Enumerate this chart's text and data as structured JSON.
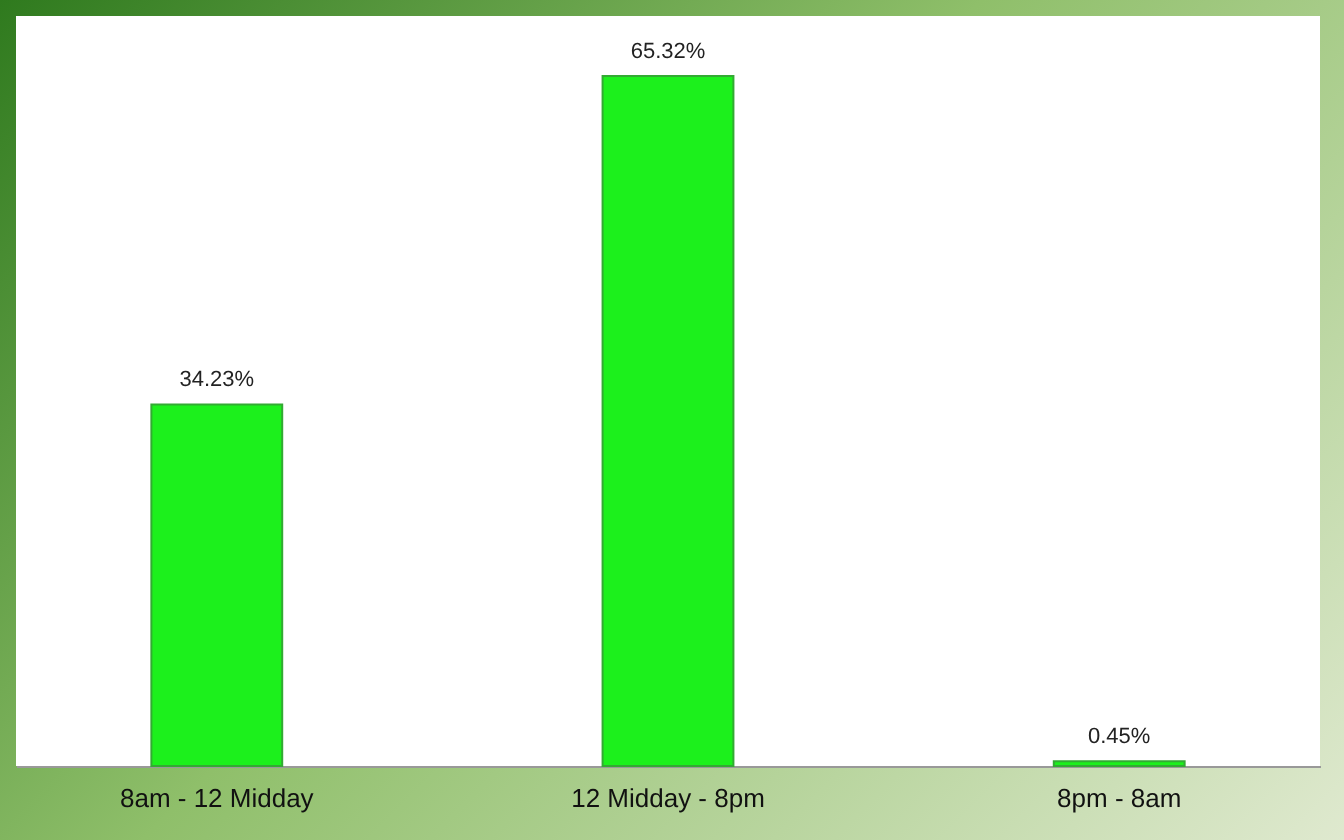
{
  "chart_data": {
    "type": "bar",
    "categories": [
      "8am - 12 Midday",
      "12 Midday - 8pm",
      "8pm - 8am"
    ],
    "values": [
      34.23,
      65.32,
      0.45
    ],
    "color": "#1cf01c",
    "value_labels": [
      "34.23%",
      "65.32%",
      "0.45%"
    ]
  }
}
